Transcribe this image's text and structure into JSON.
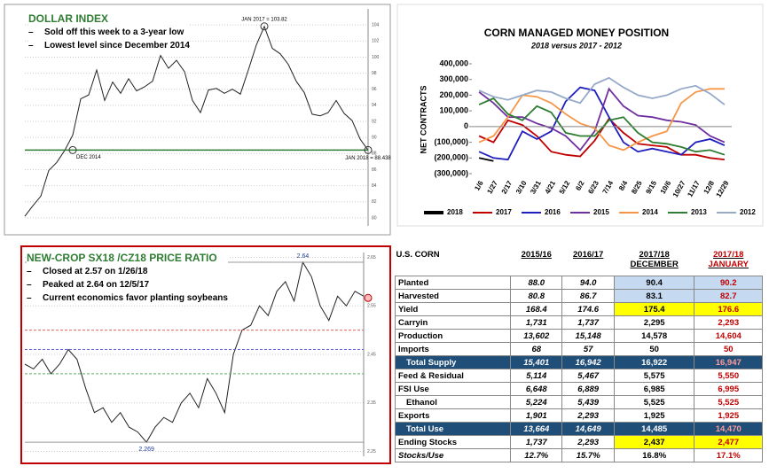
{
  "chart_data": [
    {
      "type": "line",
      "title": "DOLLAR INDEX",
      "notes": [
        "Sold off this week to a 3-year low",
        "Lowest level since December 2014"
      ],
      "annotations": [
        "JAN 2017 = 103.82",
        "DEC 2014",
        "JAN 2018 = 88.438"
      ],
      "reference_line": 88.438,
      "categories": [
        null,
        null,
        null,
        null,
        null,
        null,
        null,
        null,
        null,
        null,
        null,
        null,
        null,
        null,
        null,
        null,
        null,
        null,
        null,
        null,
        null,
        null,
        null,
        null,
        null,
        null,
        null,
        null,
        null,
        null,
        null,
        null,
        null,
        null,
        null,
        null,
        null,
        null,
        null,
        null,
        null,
        null,
        null,
        null
      ],
      "values": [
        80.2,
        81.5,
        82.7,
        85.9,
        86.9,
        88.4,
        90.3,
        94.8,
        95.3,
        98.4,
        94.6,
        96.9,
        95.5,
        97.3,
        95.8,
        96.3,
        97.0,
        100.2,
        98.6,
        99.6,
        98.2,
        94.6,
        93.1,
        95.9,
        96.1,
        95.5,
        96.0,
        95.4,
        98.4,
        101.5,
        103.82,
        101.1,
        100.4,
        99.1,
        97.0,
        95.6,
        92.9,
        92.7,
        93.1,
        94.6,
        93.0,
        92.1,
        89.8,
        88.438
      ],
      "color": "#222222",
      "ylim": [
        79,
        106
      ],
      "yticks": [
        80,
        82,
        84,
        86,
        88,
        90,
        92,
        94,
        96,
        98,
        100,
        102,
        104
      ],
      "grid": true
    },
    {
      "type": "line",
      "title": "CORN MANAGED MONEY POSITION",
      "subtitle": "2018 versus 2017 - 2012",
      "y_label": "NET CONTRACTS",
      "categories": [
        "1/6",
        "1/27",
        "2/17",
        "3/10",
        "3/31",
        "4/21",
        "5/12",
        "6/2",
        "6/23",
        "7/14",
        "8/4",
        "8/25",
        "9/15",
        "10/6",
        "10/27",
        "11/17",
        "12/8",
        "12/29"
      ],
      "series": [
        {
          "name": "2018",
          "color": "#000000",
          "values": [
            -200000,
            -220000,
            null,
            null,
            null,
            null,
            null,
            null,
            null,
            null,
            null,
            null,
            null,
            null,
            null,
            null,
            null,
            null
          ]
        },
        {
          "name": "2017",
          "color": "#c00000",
          "values": [
            -60000,
            -100000,
            40000,
            10000,
            -60000,
            -160000,
            -180000,
            -190000,
            -90000,
            50000,
            -40000,
            -110000,
            -120000,
            -130000,
            -180000,
            -180000,
            -200000,
            -210000
          ]
        },
        {
          "name": "2016",
          "color": "#1f1fbf",
          "values": [
            -160000,
            -200000,
            -210000,
            -30000,
            -80000,
            -30000,
            160000,
            250000,
            230000,
            60000,
            -100000,
            -160000,
            -140000,
            -160000,
            -180000,
            -100000,
            -80000,
            -120000
          ]
        },
        {
          "name": "2015",
          "color": "#7030a0",
          "values": [
            220000,
            150000,
            60000,
            60000,
            20000,
            -10000,
            -60000,
            -150000,
            -30000,
            240000,
            130000,
            70000,
            60000,
            40000,
            30000,
            10000,
            -60000,
            -100000
          ]
        },
        {
          "name": "2014",
          "color": "#f79646",
          "values": [
            -100000,
            -60000,
            60000,
            200000,
            190000,
            150000,
            80000,
            20000,
            -10000,
            -120000,
            -150000,
            -100000,
            -60000,
            -30000,
            150000,
            220000,
            240000,
            240000
          ]
        },
        {
          "name": "2013",
          "color": "#2e7d32",
          "values": [
            140000,
            180000,
            80000,
            40000,
            130000,
            90000,
            -40000,
            -60000,
            -60000,
            40000,
            60000,
            -40000,
            -100000,
            -110000,
            -130000,
            -160000,
            -150000,
            -180000
          ]
        },
        {
          "name": "2012",
          "color": "#95a9c9",
          "values": [
            230000,
            190000,
            170000,
            200000,
            230000,
            220000,
            180000,
            150000,
            270000,
            310000,
            250000,
            200000,
            180000,
            200000,
            240000,
            260000,
            210000,
            140000
          ]
        }
      ],
      "ylim": [
        -300000,
        400000
      ],
      "yticks": [
        {
          "value": -300000,
          "label": "(300,000)"
        },
        {
          "value": -200000,
          "label": "(200,000)"
        },
        {
          "value": -100000,
          "label": "(100,000)"
        },
        0,
        {
          "value": 100000,
          "label": "100,000"
        },
        {
          "value": 200000,
          "label": "200,000"
        },
        {
          "value": 300000,
          "label": "300,000"
        },
        {
          "value": 400000,
          "label": "400,000"
        }
      ],
      "grid": false,
      "legend": "bottom"
    },
    {
      "type": "line",
      "title": "NEW-CROP SX18 /CZ18 PRICE RATIO",
      "notes": [
        "Closed at 2.57 on 1/26/18",
        "Peaked at 2.64 on 12/5/17",
        "Current economics favor planting soybeans"
      ],
      "annotations": [
        "2.64",
        "2.269"
      ],
      "reference_lines": [
        2.5,
        2.46,
        2.41
      ],
      "reference_colors": [
        "#e06060",
        "#6060e0",
        "#60b060"
      ],
      "categories": [
        null,
        null,
        null,
        null,
        null,
        null,
        null,
        null,
        null,
        null,
        null,
        null,
        null,
        null,
        null,
        null,
        null,
        null,
        null,
        null,
        null,
        null,
        null,
        null,
        null,
        null,
        null,
        null,
        null,
        null,
        null,
        null,
        null,
        null,
        null,
        null,
        null,
        null,
        null,
        null
      ],
      "values": [
        2.43,
        2.42,
        2.44,
        2.41,
        2.43,
        2.46,
        2.44,
        2.38,
        2.33,
        2.34,
        2.31,
        2.33,
        2.3,
        2.29,
        2.269,
        2.3,
        2.32,
        2.31,
        2.35,
        2.37,
        2.34,
        2.4,
        2.37,
        2.33,
        2.45,
        2.5,
        2.51,
        2.55,
        2.53,
        2.58,
        2.6,
        2.56,
        2.64,
        2.61,
        2.55,
        2.52,
        2.57,
        2.55,
        2.58,
        2.57
      ],
      "color": "#222222",
      "ylim": [
        2.24,
        2.66
      ],
      "yticks": [
        2.25,
        2.35,
        2.45,
        2.55,
        2.65
      ],
      "grid": true
    }
  ],
  "table": {
    "header": [
      "U.S. CORN",
      "2015/16",
      "2016/17",
      "2017/18",
      "2017/18"
    ],
    "subheader": [
      "DECEMBER",
      "JANUARY"
    ],
    "rows": [
      [
        "Planted",
        "88.0",
        "94.0",
        "90.4",
        "90.2"
      ],
      [
        "Harvested",
        "80.8",
        "86.7",
        "83.1",
        "82.7"
      ],
      [
        "Yield",
        "168.4",
        "174.6",
        "175.4",
        "176.6"
      ],
      [
        "Carryin",
        "1,731",
        "1,737",
        "2,295",
        "2,293"
      ],
      [
        "Production",
        "13,602",
        "15,148",
        "14,578",
        "14,604"
      ],
      [
        "Imports",
        "68",
        "57",
        "50",
        "50"
      ],
      [
        "Total Supply",
        "15,401",
        "16,942",
        "16,922",
        "16,947"
      ],
      [
        "Feed & Residual",
        "5,114",
        "5,467",
        "5,575",
        "5,550"
      ],
      [
        "FSI Use",
        "6,648",
        "6,889",
        "6,985",
        "6,995"
      ],
      [
        "Ethanol",
        "5,224",
        "5,439",
        "5,525",
        "5,525"
      ],
      [
        "Exports",
        "1,901",
        "2,293",
        "1,925",
        "1,925"
      ],
      [
        "Total Use",
        "13,664",
        "14,649",
        "14,485",
        "14,470"
      ],
      [
        "Ending Stocks",
        "1,737",
        "2,293",
        "2,437",
        "2,477"
      ],
      [
        "Stocks/Use",
        "12.7%",
        "15.7%",
        "16.8%",
        "17.1%"
      ]
    ]
  }
}
